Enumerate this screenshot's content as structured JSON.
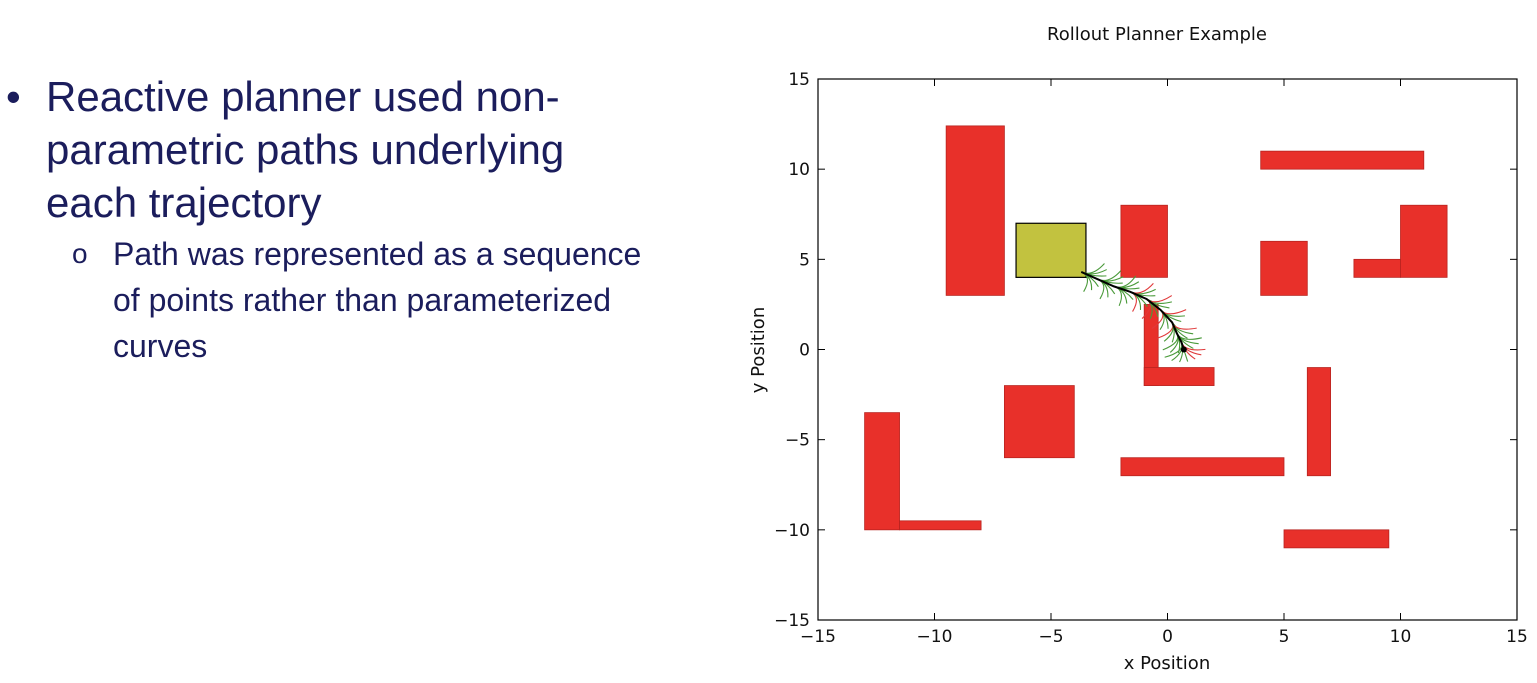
{
  "slide": {
    "bullet": "Reactive planner used non-parametric paths underlying each trajectory",
    "bullet_marker": "•",
    "sub_bullet": "Path was represented as a sequence of points rather than parameterized curves",
    "sub_bullet_marker": "o"
  },
  "colors": {
    "text": "#1b1d5c",
    "obstacle": "#e8302a",
    "start_box": "#c2c23f",
    "rollout_green": "#4a9a3a",
    "rollout_red": "#e0393a",
    "path": "#000000"
  },
  "chart_data": {
    "type": "scatter",
    "title": "Rollout Planner Example",
    "xlabel": "x Position",
    "ylabel": "y Position",
    "xlim": [
      -15,
      15
    ],
    "ylim": [
      -15,
      15
    ],
    "xticks": [
      -15,
      -10,
      -5,
      0,
      5,
      10,
      15
    ],
    "yticks": [
      -15,
      -10,
      -5,
      0,
      5,
      10,
      15
    ],
    "xtick_labels": [
      "−15",
      "−10",
      "−5",
      "0",
      "5",
      "10",
      "15"
    ],
    "ytick_labels": [
      "−15",
      "−10",
      "−5",
      "0",
      "5",
      "10",
      "15"
    ],
    "grid": false,
    "obstacles": [
      {
        "x0": -9.5,
        "x1": -7.0,
        "y0": 3.0,
        "y1": 12.4
      },
      {
        "x0": 4.0,
        "x1": 11.0,
        "y0": 10.0,
        "y1": 11.0
      },
      {
        "x0": -2.0,
        "x1": 0.0,
        "y0": 4.0,
        "y1": 8.0
      },
      {
        "x0": 4.0,
        "x1": 6.0,
        "y0": 3.0,
        "y1": 6.0
      },
      {
        "x0": 10.0,
        "x1": 12.0,
        "y0": 4.0,
        "y1": 8.0
      },
      {
        "x0": 8.0,
        "x1": 10.0,
        "y0": 4.0,
        "y1": 5.0
      },
      {
        "x0": -1.0,
        "x1": -0.4,
        "y0": -2.0,
        "y1": 2.5
      },
      {
        "x0": -1.0,
        "x1": 2.0,
        "y0": -2.0,
        "y1": -1.0
      },
      {
        "x0": 6.0,
        "x1": 7.0,
        "y0": -7.0,
        "y1": -1.0
      },
      {
        "x0": -7.0,
        "x1": -4.0,
        "y0": -6.0,
        "y1": -2.0
      },
      {
        "x0": -2.0,
        "x1": 5.0,
        "y0": -7.0,
        "y1": -6.0
      },
      {
        "x0": -13.0,
        "x1": -11.5,
        "y0": -10.0,
        "y1": -3.5
      },
      {
        "x0": -11.5,
        "x1": -8.0,
        "y0": -10.0,
        "y1": -9.5
      },
      {
        "x0": 5.0,
        "x1": 9.5,
        "y0": -11.0,
        "y1": -10.0
      }
    ],
    "start_region": {
      "x0": -6.5,
      "x1": -3.5,
      "y0": 4.0,
      "y1": 7.0
    },
    "path": {
      "x": [
        -3.7,
        -3.0,
        -2.3,
        -1.6,
        -0.9,
        -0.3,
        0.2,
        0.4,
        0.6,
        0.7
      ],
      "y": [
        4.3,
        3.9,
        3.5,
        3.2,
        2.8,
        2.2,
        1.5,
        0.9,
        0.4,
        0.0
      ]
    }
  }
}
